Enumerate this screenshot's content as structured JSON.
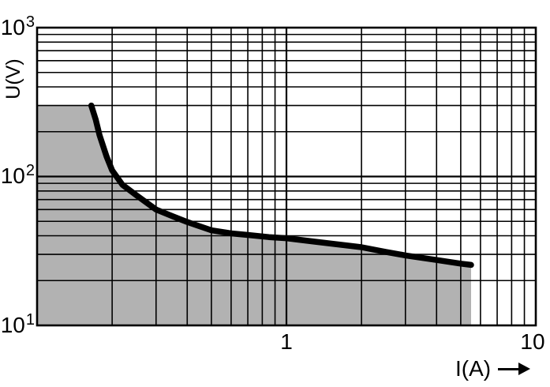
{
  "figure": {
    "background_color": "#ffffff",
    "grid_color": "#000000",
    "frame_color": "#000000"
  },
  "chart_data": {
    "type": "area",
    "title": "",
    "description": "Log-log contact load limit curve: voltage U(V) versus current I(A); gray shaded region below the thick curve is the permissible load area",
    "grid": "log minor gridlines on, both axes",
    "x_axis": {
      "label": "I(A)",
      "scale": "log",
      "min": 0.1,
      "max": 10,
      "ticks": [
        {
          "value": 1,
          "label": "1"
        },
        {
          "value": 10,
          "label": "10"
        }
      ]
    },
    "y_axis": {
      "label": "U(V)",
      "scale": "log",
      "min": 10,
      "max": 1000,
      "ticks": [
        {
          "value": 1000,
          "base": "10",
          "exp": "3"
        },
        {
          "value": 100,
          "base": "10",
          "exp": "2"
        },
        {
          "value": 10,
          "base": "10",
          "exp": "1"
        }
      ]
    },
    "curve": {
      "name": "load-limit-curve",
      "color": "#000000",
      "stroke_width": 7.5,
      "points": [
        [
          0.165,
          300
        ],
        [
          0.172,
          240
        ],
        [
          0.178,
          190
        ],
        [
          0.19,
          136
        ],
        [
          0.2,
          110
        ],
        [
          0.22,
          88
        ],
        [
          0.25,
          75
        ],
        [
          0.3,
          60
        ],
        [
          0.35,
          54
        ],
        [
          0.4,
          49.5
        ],
        [
          0.5,
          43.5
        ],
        [
          0.6,
          41.5
        ],
        [
          0.7,
          40.5
        ],
        [
          0.85,
          39.2
        ],
        [
          1.0,
          38.5
        ],
        [
          1.3,
          36.5
        ],
        [
          1.6,
          35
        ],
        [
          2.0,
          33.5
        ],
        [
          2.5,
          31.2
        ],
        [
          3.0,
          29.5
        ],
        [
          4.0,
          27.5
        ],
        [
          5.0,
          26
        ],
        [
          5.5,
          25.5
        ]
      ]
    },
    "shaded_region": {
      "fill_color": "#b2b2b2",
      "pre_points": [
        [
          0.1,
          300
        ]
      ],
      "post_points": [
        [
          5.5,
          10
        ],
        [
          0.1,
          10
        ]
      ],
      "follows_curve": true
    }
  }
}
